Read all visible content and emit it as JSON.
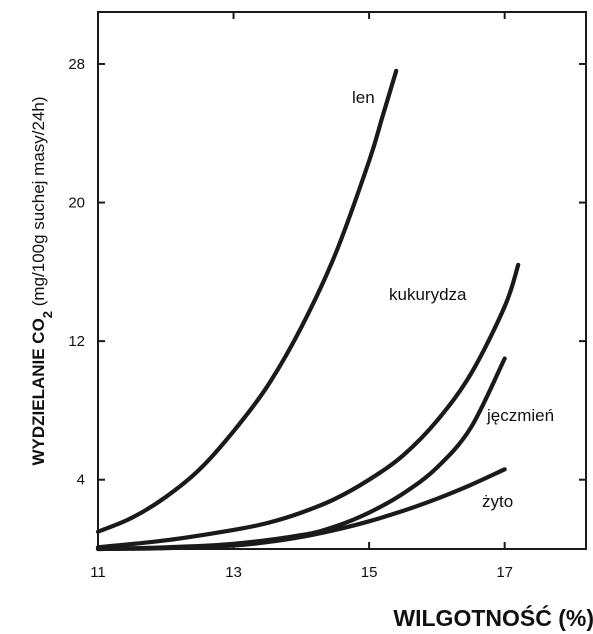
{
  "chart_data": {
    "type": "line",
    "xlabel": "WILGOTNOŚĆ (%)",
    "ylabel_main": "WYDZIELANIE CO",
    "ylabel_sub": "2",
    "ylabel_rest": " (mg/100g suchej masy/24h)",
    "xlim": [
      11,
      18.2
    ],
    "ylim": [
      0,
      31
    ],
    "x_ticks": [
      11,
      13,
      15,
      17
    ],
    "y_ticks": [
      4,
      12,
      20,
      28
    ],
    "x_tick_labels": [
      "11",
      "13",
      "15",
      "17"
    ],
    "y_tick_labels": [
      "4",
      "12",
      "20",
      "28"
    ],
    "grid": false,
    "series": [
      {
        "name": "len",
        "x": [
          11,
          11.5,
          12,
          12.5,
          13,
          13.5,
          14,
          14.5,
          15,
          15.2,
          15.4
        ],
        "y": [
          1.0,
          1.8,
          3.0,
          4.6,
          6.8,
          9.4,
          12.8,
          17.0,
          22.4,
          25.0,
          27.6
        ]
      },
      {
        "name": "kukurydza",
        "x": [
          11,
          12,
          13,
          13.5,
          14,
          14.5,
          15,
          15.5,
          16,
          16.5,
          17,
          17.2
        ],
        "y": [
          0.1,
          0.5,
          1.1,
          1.5,
          2.1,
          2.9,
          4.0,
          5.4,
          7.4,
          10.1,
          14.0,
          16.4
        ]
      },
      {
        "name": "jęczmień",
        "x": [
          11,
          12,
          13,
          14,
          14.5,
          15,
          15.5,
          16,
          16.5,
          17
        ],
        "y": [
          0.0,
          0.1,
          0.3,
          0.8,
          1.3,
          2.1,
          3.2,
          4.7,
          7.0,
          11.0
        ]
      },
      {
        "name": "żyto",
        "x": [
          11,
          12,
          13,
          13.5,
          14,
          14.5,
          15,
          15.5,
          16,
          16.5,
          17
        ],
        "y": [
          0.0,
          0.05,
          0.2,
          0.4,
          0.7,
          1.1,
          1.6,
          2.2,
          2.9,
          3.7,
          4.6
        ]
      }
    ]
  }
}
